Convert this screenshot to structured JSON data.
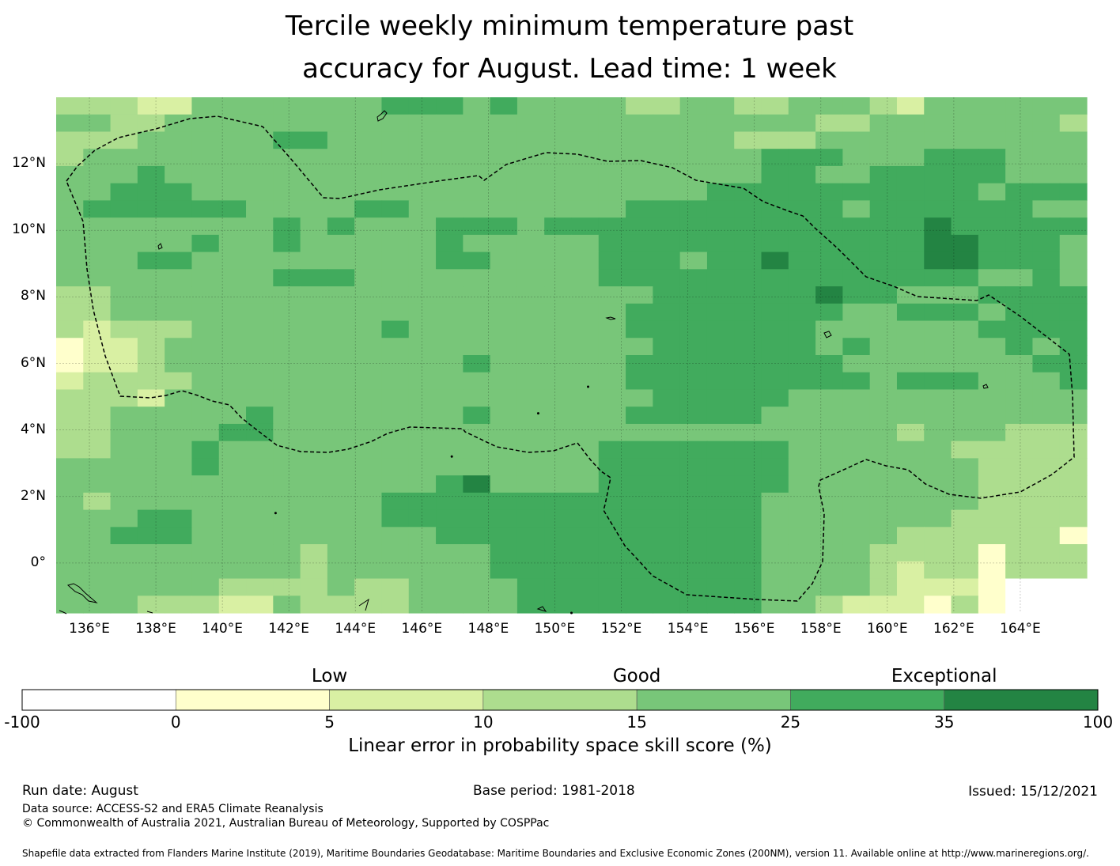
{
  "title": "Tercile weekly minimum temperature past\naccuracy for August. Lead time: 1 week",
  "chart_data": {
    "type": "heatmap",
    "x_ticks": [
      "136°E",
      "138°E",
      "140°E",
      "142°E",
      "144°E",
      "146°E",
      "148°E",
      "150°E",
      "152°E",
      "154°E",
      "156°E",
      "158°E",
      "160°E",
      "162°E",
      "164°E"
    ],
    "y_ticks": [
      "12°N",
      "10°N",
      "8°N",
      "6°N",
      "4°N",
      "2°N",
      "0°"
    ],
    "xlim": [
      135,
      166
    ],
    "ylim": [
      -1.5,
      14
    ],
    "colorbar": {
      "label": "Linear error in probability space skill score (%)",
      "categories": [
        "Low",
        "Good",
        "Exceptional"
      ],
      "bounds": [
        "-100",
        "0",
        "5",
        "10",
        "15",
        "25",
        "35",
        "100"
      ],
      "colors": [
        "#ffffff",
        "#ffffcc",
        "#d9f0a3",
        "#addd8e",
        "#78c679",
        "#41ab5d",
        "#238443"
      ]
    },
    "grid": "0123456789ABCDEFGHIJKLMNOPQRSTUVWXYZ",
    "cells": [
      "33322444444455545444433443344432444444",
      "44334444444444444444444444443344444443",
      "33344444554444444444444443334444444444",
      "34444444444444444444444444555444555444",
      "44454444444444444444444444554455555444",
      "44555444444444444444444455555555554555",
      "45555554444554444444455555555455555544",
      "44444444545444555455555555555555655555",
      "44444544544444544444555555555555665554",
      "44455444444444554444555455655555665554",
      "44444444555444444444555555555555554454",
      "33444444444444444444445555556554445555",
      "33444444444444444444455555555445554555",
      "32333444444454444444455555554444445555",
      "12234444444444444444445555554544444545",
      "12234444444444454444455555555444444455",
      "23333444444444444444455555555545554445",
      "33324444444444444444445555544444444444",
      "33444445444444454444455555444444444444",
      "33444455444444444444444444444443444333",
      "33444544444444444444555555544444433333",
      "44444544444444444444555555544444443333",
      "44444444444444564444555555544444443333",
      "43444444444455555555555555444444443333",
      "44455444444455555555555555444444433333",
      "44555444444444555555555555444443333331",
      "44444444434444445555555555444433331333",
      "44444444434444445555555555444432331333",
      "44444433334334444555555555444432221000",
      "44433322433334444555555555443222131000"
    ],
    "land_markers": [
      [
        141.6,
        1.5
      ],
      [
        146.9,
        3.2
      ],
      [
        150.5,
        -1.5
      ],
      [
        151.0,
        5.3
      ],
      [
        149.5,
        4.5
      ]
    ]
  },
  "footer": {
    "run_date": "Run date: August",
    "base_period": "Base period: 1981-2018",
    "issued": "Issued: 15/12/2021",
    "data_source": "Data source: ACCESS-S2 and ERA5 Climate Reanalysis",
    "copyright": "© Commonwealth of Australia 2021, Australian Bureau of Meteorology, Supported by COSPPac",
    "shapefile": "Shapefile data extracted from Flanders Marine Institute (2019), Maritime Boundaries Geodatabase: Maritime Boundaries and Exclusive Economic Zones (200NM), version 11. Available online at http://www.marineregions.org/."
  }
}
